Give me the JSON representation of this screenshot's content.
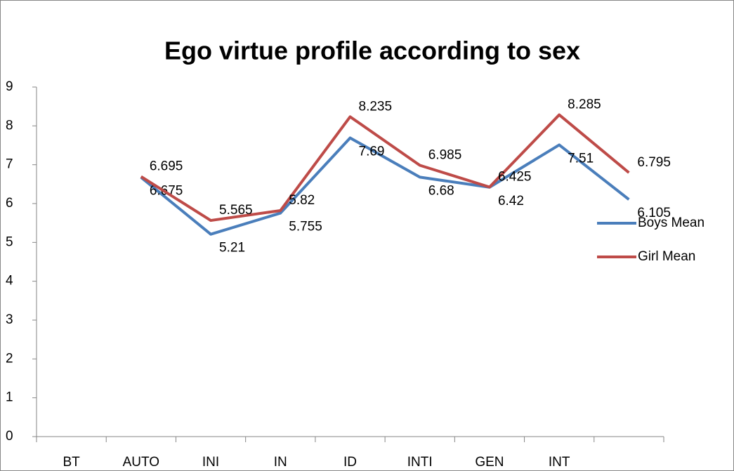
{
  "chart_data": {
    "type": "line",
    "title": "Ego virtue profile according to sex",
    "categories": [
      "BT",
      "AUTO",
      "INI",
      "IN",
      "ID",
      "INTI",
      "GEN",
      "INT",
      null
    ],
    "series": [
      {
        "name": "Boys Mean",
        "color": "#4a7ebb",
        "values": [
          null,
          6.675,
          5.21,
          5.755,
          7.69,
          6.68,
          6.42,
          7.51,
          6.105
        ]
      },
      {
        "name": "Girl Mean",
        "color": "#be4b48",
        "values": [
          null,
          6.695,
          5.565,
          5.82,
          8.235,
          6.985,
          6.425,
          8.285,
          6.795
        ]
      }
    ],
    "ylim": [
      0,
      9
    ],
    "yticks": [
      0,
      1,
      2,
      3,
      4,
      5,
      6,
      7,
      8,
      9
    ],
    "grid": false,
    "legend": "right"
  }
}
